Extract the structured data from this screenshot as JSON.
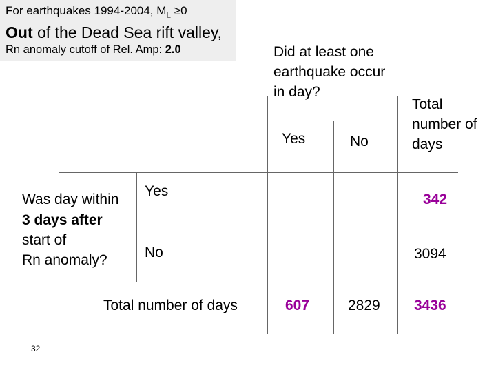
{
  "header": {
    "line1_prefix": "For earthquakes 1994-2004, M",
    "line1_sub": "L",
    "line1_suffix": "≥0",
    "line2_bold": "Out",
    "line2_rest": " of the Dead Sea rift valley,",
    "line3_prefix": "Rn anomaly cutoff of Rel. Amp: ",
    "line3_value": "2.0"
  },
  "table": {
    "column_question": "Did  at least one earthquake occur in day?",
    "column_total": "Total number of days",
    "col_yes": "Yes",
    "col_no": "No",
    "row_question_line1": "Was day within",
    "row_question_line2": "3 days after",
    "row_question_line3": "start of",
    "row_question_line4": "Rn anomaly?",
    "row_yes": "Yes",
    "row_no": "No",
    "row_total_label": "Total number of days",
    "yes_row_total": "342",
    "no_row_total": "3094",
    "total_yes_col": "607",
    "total_no_col": "2829",
    "grand_total": "3436"
  },
  "slide_number": "32",
  "colors": {
    "highlight": "#990099",
    "header_bg": "#eeeeee"
  }
}
